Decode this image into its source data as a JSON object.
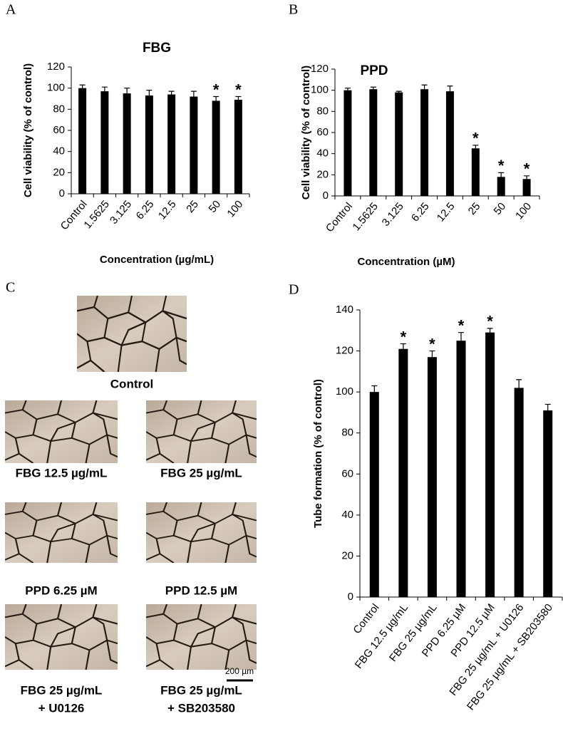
{
  "panels": [
    "A",
    "B",
    "C",
    "D"
  ],
  "chart_data": [
    {
      "type": "bar",
      "title": "FBG",
      "x_label": "Concentration (µg/mL)",
      "y_label": "Cell viability (% of control)",
      "categories": [
        "Control",
        "1.5625",
        "3.125",
        "6.25",
        "12.5",
        "25",
        "50",
        "100"
      ],
      "values": [
        100,
        97,
        95,
        93,
        94,
        92,
        88,
        89
      ],
      "errors": [
        3,
        4,
        5,
        5,
        3,
        5,
        4,
        3
      ],
      "significance": [
        null,
        null,
        null,
        null,
        null,
        null,
        "*",
        "*"
      ],
      "color": "#000000",
      "ylim": [
        0,
        120
      ],
      "yticks": [
        0,
        20,
        40,
        60,
        80,
        100,
        120
      ]
    },
    {
      "type": "bar",
      "title": "PPD",
      "x_label": "Concentration (µM)",
      "y_label": "Cell viability (% of control)",
      "categories": [
        "Control",
        "1.5625",
        "3.125",
        "6.25",
        "12.5",
        "25",
        "50",
        "100"
      ],
      "values": [
        100,
        101,
        98,
        101,
        99,
        45,
        18,
        16
      ],
      "errors": [
        2,
        2,
        1,
        4,
        5,
        3,
        4,
        3
      ],
      "significance": [
        null,
        null,
        null,
        null,
        null,
        "*",
        "*",
        "*"
      ],
      "color": "#000000",
      "ylim": [
        0,
        120
      ],
      "yticks": [
        0,
        20,
        40,
        60,
        80,
        100,
        120
      ]
    },
    {
      "type": "bar",
      "y_label": "Tube formation (% of control)",
      "categories": [
        "Control",
        "FBG 12.5 µg/mL",
        "FBG 25 µg/mL",
        "PPD 6.25 µM",
        "PPD 12.5 µM",
        "FBG 25 µg/mL + U0126",
        "FBG 25 µg/mL + SB203580"
      ],
      "values": [
        100,
        121,
        117,
        125,
        129,
        102,
        91
      ],
      "errors": [
        3,
        2.5,
        3,
        4,
        2,
        4,
        3
      ],
      "significance": [
        null,
        "*",
        "*",
        "*",
        "*",
        null,
        null
      ],
      "color": "#000000",
      "ylim": [
        0,
        140
      ],
      "yticks": [
        0,
        20,
        40,
        60,
        80,
        100,
        120,
        140
      ]
    }
  ],
  "micrographs": {
    "captions": [
      [
        "Control"
      ],
      [
        "FBG 12.5 µg/mL"
      ],
      [
        "FBG 25 µg/mL"
      ],
      [
        "PPD 6.25 µM"
      ],
      [
        "PPD 12.5 µM"
      ],
      [
        "FBG 25 µg/mL",
        "+ U0126"
      ],
      [
        "FBG 25 µg/mL",
        "+ SB203580"
      ]
    ],
    "scale_bar": "200 µm"
  }
}
